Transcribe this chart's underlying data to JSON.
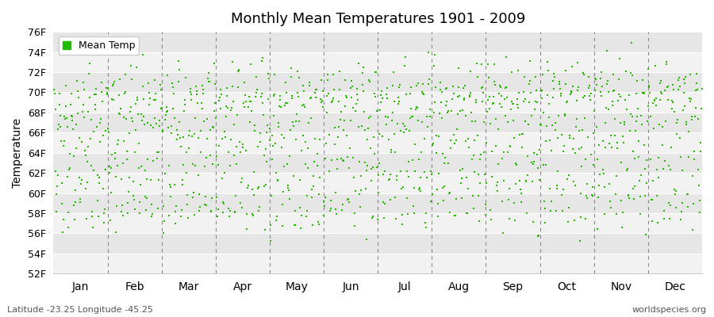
{
  "title": "Monthly Mean Temperatures 1901 - 2009",
  "ylabel": "Temperature",
  "xlabel_months": [
    "Jan",
    "Feb",
    "Mar",
    "Apr",
    "May",
    "Jun",
    "Jul",
    "Aug",
    "Sep",
    "Oct",
    "Nov",
    "Dec"
  ],
  "yticks": [
    "52F",
    "54F",
    "56F",
    "58F",
    "60F",
    "62F",
    "64F",
    "66F",
    "68F",
    "70F",
    "72F",
    "74F",
    "76F"
  ],
  "ytick_values": [
    52,
    54,
    56,
    58,
    60,
    62,
    64,
    66,
    68,
    70,
    72,
    74,
    76
  ],
  "ylim": [
    52,
    76
  ],
  "xlim": [
    0,
    1308
  ],
  "marker_color": "#22BB00",
  "background_color": "#ffffff",
  "band_color_light": "#f2f2f2",
  "band_color_dark": "#e6e6e6",
  "legend_label": "Mean Temp",
  "subtitle_left": "Latitude -23.25 Longitude -45.25",
  "subtitle_right": "worldspecies.org",
  "n_years": 109,
  "start_year": 1901,
  "end_year": 2009,
  "monthly_means": [
    69.5,
    70.5,
    69.0,
    66.0,
    62.5,
    58.5,
    57.5,
    59.5,
    62.5,
    65.5,
    67.5,
    69.5
  ],
  "monthly_stds": [
    1.6,
    1.5,
    1.4,
    1.5,
    1.5,
    1.4,
    1.5,
    1.5,
    1.5,
    1.5,
    1.5,
    1.5
  ],
  "warming_trend": 0.008,
  "seed": 42
}
